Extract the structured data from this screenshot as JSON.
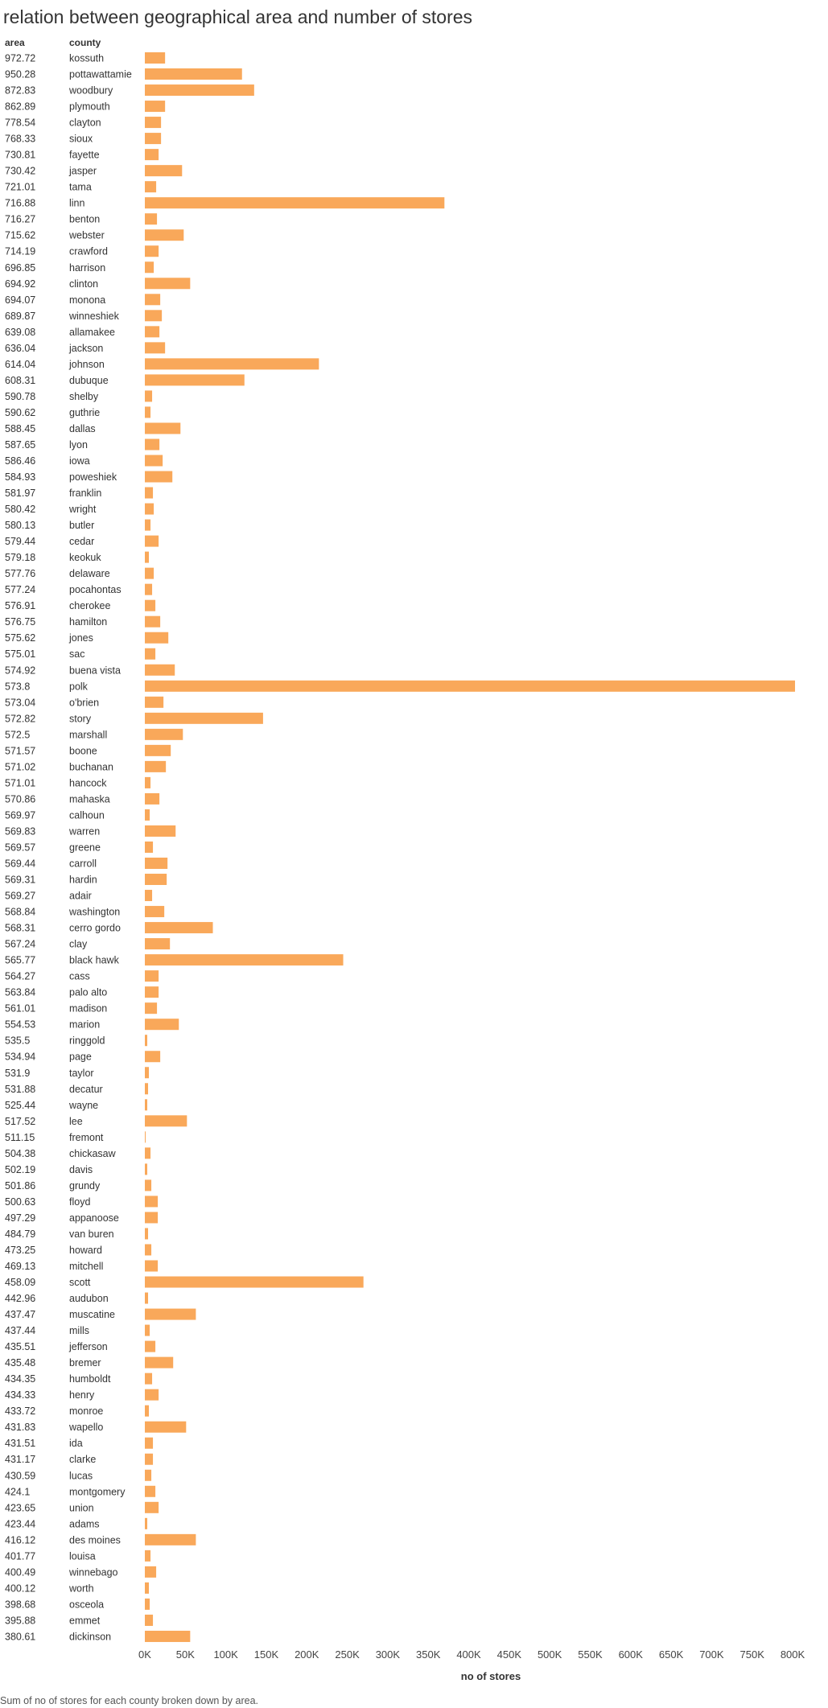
{
  "chart_data": {
    "type": "bar",
    "orientation": "horizontal",
    "title": "relation between geographical area and number of stores",
    "row_headers": [
      "area",
      "county"
    ],
    "xlabel": "no of stores",
    "caption": "Sum of no of stores for each county broken down by area.",
    "xlim": [
      0,
      800000
    ],
    "x_ticks": [
      0,
      50000,
      100000,
      150000,
      200000,
      250000,
      300000,
      350000,
      400000,
      450000,
      500000,
      550000,
      600000,
      650000,
      700000,
      750000,
      800000
    ],
    "x_tick_labels": [
      "0K",
      "50K",
      "100K",
      "150K",
      "200K",
      "250K",
      "300K",
      "350K",
      "400K",
      "450K",
      "500K",
      "550K",
      "600K",
      "650K",
      "700K",
      "750K",
      "800K"
    ],
    "bar_color": "#f9a85a",
    "rows": [
      {
        "area": "972.72",
        "county": "kossuth",
        "value": 25000
      },
      {
        "area": "950.28",
        "county": "pottawattamie",
        "value": 120000
      },
      {
        "area": "872.83",
        "county": "woodbury",
        "value": 135000
      },
      {
        "area": "862.89",
        "county": "plymouth",
        "value": 25000
      },
      {
        "area": "778.54",
        "county": "clayton",
        "value": 20000
      },
      {
        "area": "768.33",
        "county": "sioux",
        "value": 20000
      },
      {
        "area": "730.81",
        "county": "fayette",
        "value": 17000
      },
      {
        "area": "730.42",
        "county": "jasper",
        "value": 46000
      },
      {
        "area": "721.01",
        "county": "tama",
        "value": 14000
      },
      {
        "area": "716.88",
        "county": "linn",
        "value": 370000
      },
      {
        "area": "716.27",
        "county": "benton",
        "value": 15000
      },
      {
        "area": "715.62",
        "county": "webster",
        "value": 48000
      },
      {
        "area": "714.19",
        "county": "crawford",
        "value": 17000
      },
      {
        "area": "696.85",
        "county": "harrison",
        "value": 11000
      },
      {
        "area": "694.92",
        "county": "clinton",
        "value": 56000
      },
      {
        "area": "694.07",
        "county": "monona",
        "value": 19000
      },
      {
        "area": "689.87",
        "county": "winneshiek",
        "value": 21000
      },
      {
        "area": "639.08",
        "county": "allamakee",
        "value": 18000
      },
      {
        "area": "636.04",
        "county": "jackson",
        "value": 25000
      },
      {
        "area": "614.04",
        "county": "johnson",
        "value": 215000
      },
      {
        "area": "608.31",
        "county": "dubuque",
        "value": 123000
      },
      {
        "area": "590.78",
        "county": "shelby",
        "value": 9000
      },
      {
        "area": "590.62",
        "county": "guthrie",
        "value": 7000
      },
      {
        "area": "588.45",
        "county": "dallas",
        "value": 44000
      },
      {
        "area": "587.65",
        "county": "lyon",
        "value": 18000
      },
      {
        "area": "586.46",
        "county": "iowa",
        "value": 22000
      },
      {
        "area": "584.93",
        "county": "poweshiek",
        "value": 34000
      },
      {
        "area": "581.97",
        "county": "franklin",
        "value": 10000
      },
      {
        "area": "580.42",
        "county": "wright",
        "value": 11000
      },
      {
        "area": "580.13",
        "county": "butler",
        "value": 7000
      },
      {
        "area": "579.44",
        "county": "cedar",
        "value": 17000
      },
      {
        "area": "579.18",
        "county": "keokuk",
        "value": 5000
      },
      {
        "area": "577.76",
        "county": "delaware",
        "value": 11000
      },
      {
        "area": "577.24",
        "county": "pocahontas",
        "value": 9000
      },
      {
        "area": "576.91",
        "county": "cherokee",
        "value": 13000
      },
      {
        "area": "576.75",
        "county": "hamilton",
        "value": 19000
      },
      {
        "area": "575.62",
        "county": "jones",
        "value": 29000
      },
      {
        "area": "575.01",
        "county": "sac",
        "value": 13000
      },
      {
        "area": "574.92",
        "county": "buena vista",
        "value": 37000
      },
      {
        "area": "573.8",
        "county": "polk",
        "value": 803000
      },
      {
        "area": "573.04",
        "county": "o'brien",
        "value": 23000
      },
      {
        "area": "572.82",
        "county": "story",
        "value": 146000
      },
      {
        "area": "572.5",
        "county": "marshall",
        "value": 47000
      },
      {
        "area": "571.57",
        "county": "boone",
        "value": 32000
      },
      {
        "area": "571.02",
        "county": "buchanan",
        "value": 26000
      },
      {
        "area": "571.01",
        "county": "hancock",
        "value": 7000
      },
      {
        "area": "570.86",
        "county": "mahaska",
        "value": 18000
      },
      {
        "area": "569.97",
        "county": "calhoun",
        "value": 6000
      },
      {
        "area": "569.83",
        "county": "warren",
        "value": 38000
      },
      {
        "area": "569.57",
        "county": "greene",
        "value": 10000
      },
      {
        "area": "569.44",
        "county": "carroll",
        "value": 28000
      },
      {
        "area": "569.31",
        "county": "hardin",
        "value": 27000
      },
      {
        "area": "569.27",
        "county": "adair",
        "value": 9000
      },
      {
        "area": "568.84",
        "county": "washington",
        "value": 24000
      },
      {
        "area": "568.31",
        "county": "cerro gordo",
        "value": 84000
      },
      {
        "area": "567.24",
        "county": "clay",
        "value": 31000
      },
      {
        "area": "565.77",
        "county": "black hawk",
        "value": 245000
      },
      {
        "area": "564.27",
        "county": "cass",
        "value": 17000
      },
      {
        "area": "563.84",
        "county": "palo alto",
        "value": 17000
      },
      {
        "area": "561.01",
        "county": "madison",
        "value": 15000
      },
      {
        "area": "554.53",
        "county": "marion",
        "value": 42000
      },
      {
        "area": "535.5",
        "county": "ringgold",
        "value": 3000
      },
      {
        "area": "534.94",
        "county": "page",
        "value": 19000
      },
      {
        "area": "531.9",
        "county": "taylor",
        "value": 5000
      },
      {
        "area": "531.88",
        "county": "decatur",
        "value": 4000
      },
      {
        "area": "525.44",
        "county": "wayne",
        "value": 3000
      },
      {
        "area": "517.52",
        "county": "lee",
        "value": 52000
      },
      {
        "area": "511.15",
        "county": "fremont",
        "value": 1000
      },
      {
        "area": "504.38",
        "county": "chickasaw",
        "value": 7000
      },
      {
        "area": "502.19",
        "county": "davis",
        "value": 3000
      },
      {
        "area": "501.86",
        "county": "grundy",
        "value": 8000
      },
      {
        "area": "500.63",
        "county": "floyd",
        "value": 16000
      },
      {
        "area": "497.29",
        "county": "appanoose",
        "value": 16000
      },
      {
        "area": "484.79",
        "county": "van buren",
        "value": 4000
      },
      {
        "area": "473.25",
        "county": "howard",
        "value": 8000
      },
      {
        "area": "469.13",
        "county": "mitchell",
        "value": 16000
      },
      {
        "area": "458.09",
        "county": "scott",
        "value": 270000
      },
      {
        "area": "442.96",
        "county": "audubon",
        "value": 4000
      },
      {
        "area": "437.47",
        "county": "muscatine",
        "value": 63000
      },
      {
        "area": "437.44",
        "county": "mills",
        "value": 6000
      },
      {
        "area": "435.51",
        "county": "jefferson",
        "value": 13000
      },
      {
        "area": "435.48",
        "county": "bremer",
        "value": 35000
      },
      {
        "area": "434.35",
        "county": "humboldt",
        "value": 9000
      },
      {
        "area": "434.33",
        "county": "henry",
        "value": 17000
      },
      {
        "area": "433.72",
        "county": "monroe",
        "value": 5000
      },
      {
        "area": "431.83",
        "county": "wapello",
        "value": 51000
      },
      {
        "area": "431.51",
        "county": "ida",
        "value": 10000
      },
      {
        "area": "431.17",
        "county": "clarke",
        "value": 10000
      },
      {
        "area": "430.59",
        "county": "lucas",
        "value": 8000
      },
      {
        "area": "424.1",
        "county": "montgomery",
        "value": 13000
      },
      {
        "area": "423.65",
        "county": "union",
        "value": 17000
      },
      {
        "area": "423.44",
        "county": "adams",
        "value": 3000
      },
      {
        "area": "416.12",
        "county": "des moines",
        "value": 63000
      },
      {
        "area": "401.77",
        "county": "louisa",
        "value": 7000
      },
      {
        "area": "400.49",
        "county": "winnebago",
        "value": 14000
      },
      {
        "area": "400.12",
        "county": "worth",
        "value": 5000
      },
      {
        "area": "398.68",
        "county": "osceola",
        "value": 6000
      },
      {
        "area": "395.88",
        "county": "emmet",
        "value": 10000
      },
      {
        "area": "380.61",
        "county": "dickinson",
        "value": 56000
      }
    ]
  }
}
